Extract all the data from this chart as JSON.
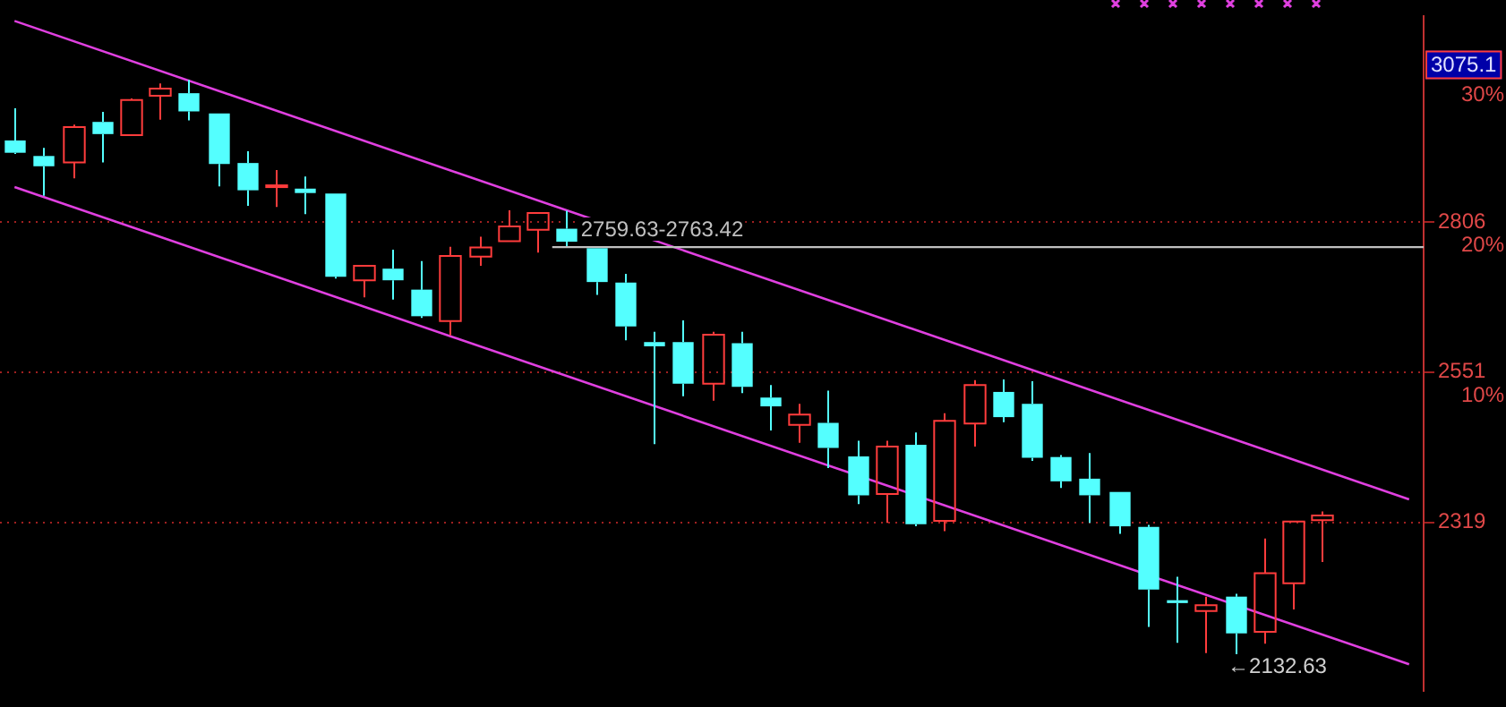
{
  "chart_data": {
    "type": "candlestick",
    "log": true,
    "grid": "y",
    "tick_labels": "y",
    "categories": [
      null,
      null,
      null,
      null,
      null,
      null,
      null,
      null,
      null,
      null,
      null,
      null,
      null,
      null,
      null,
      null,
      null,
      null,
      null,
      null,
      null,
      null,
      null,
      null,
      null,
      null,
      null,
      null,
      null,
      null,
      null,
      null,
      null,
      null,
      null,
      null,
      null,
      null,
      null,
      null,
      null,
      null,
      null,
      null,
      null,
      null,
      null,
      null,
      null
    ],
    "ohlc": [
      [
        2955,
        3016,
        2930,
        2932
      ],
      [
        2926,
        2941,
        2853,
        2907
      ],
      [
        2914,
        2985,
        2885,
        2980
      ],
      [
        2990,
        3009,
        2914,
        2967
      ],
      [
        2965,
        3035,
        2965,
        3032
      ],
      [
        3040,
        3064,
        2994,
        3054
      ],
      [
        3045,
        3071,
        2993,
        3010
      ],
      [
        3006,
        3006,
        2870,
        2911
      ],
      [
        2913,
        2935,
        2835,
        2863
      ],
      [
        2870,
        2900,
        2833,
        2872
      ],
      [
        2866,
        2888,
        2820,
        2858
      ],
      [
        2857,
        2857,
        2707,
        2710
      ],
      [
        2704,
        2729,
        2675,
        2729
      ],
      [
        2724,
        2757,
        2671,
        2704
      ],
      [
        2688,
        2737,
        2640,
        2643
      ],
      [
        2635,
        2762,
        2611,
        2746
      ],
      [
        2745,
        2780,
        2729,
        2761
      ],
      [
        2772,
        2827,
        2772,
        2798
      ],
      [
        2792,
        2822,
        2752,
        2822
      ],
      [
        2794,
        2826,
        2763.42,
        2771
      ],
      [
        2759.63,
        2759.63,
        2679,
        2701
      ],
      [
        2700,
        2715,
        2603,
        2626
      ],
      [
        2600,
        2617,
        2437,
        2593
      ],
      [
        2600,
        2636,
        2512,
        2532
      ],
      [
        2532,
        2617,
        2505,
        2612
      ],
      [
        2598,
        2617,
        2517,
        2527
      ],
      [
        2510,
        2530,
        2458,
        2496
      ],
      [
        2467,
        2500,
        2439,
        2483
      ],
      [
        2470,
        2521,
        2400,
        2431
      ],
      [
        2418,
        2442,
        2346,
        2359
      ],
      [
        2361,
        2442,
        2318,
        2433
      ],
      [
        2436,
        2455,
        2313,
        2316
      ],
      [
        2321,
        2485,
        2306,
        2473
      ],
      [
        2469,
        2538,
        2433,
        2530
      ],
      [
        2519,
        2539,
        2471,
        2479
      ],
      [
        2500,
        2536,
        2411,
        2416
      ],
      [
        2417,
        2420,
        2370,
        2380
      ],
      [
        2384,
        2423,
        2318,
        2359
      ],
      [
        2364,
        2364,
        2302,
        2313
      ],
      [
        2312,
        2315,
        2170,
        2222
      ],
      [
        2207,
        2240,
        2148,
        2203
      ],
      [
        2192,
        2212,
        2134,
        2200
      ],
      [
        2212,
        2216,
        2132.63,
        2161
      ],
      [
        2163,
        2295,
        2147,
        2245
      ],
      [
        2231,
        2320,
        2194,
        2320
      ],
      [
        2322,
        2335,
        2261,
        2329
      ],
      null,
      null,
      null
    ],
    "colors": [
      "#54ffff",
      "#54ffff",
      "#ff3c3c",
      "#54ffff",
      "#ff3c3c",
      "#ff3c3c",
      "#54ffff",
      "#54ffff",
      "#54ffff",
      "#ff3c3c",
      "#54ffff",
      "#54ffff",
      "#ff3c3c",
      "#54ffff",
      "#54ffff",
      "#ff3c3c",
      "#ff3c3c",
      "#ff3c3c",
      "#ff3c3c",
      "#54ffff",
      "#54ffff",
      "#54ffff",
      "#54ffff",
      "#54ffff",
      "#ff3c3c",
      "#54ffff",
      "#54ffff",
      "#ff3c3c",
      "#54ffff",
      "#54ffff",
      "#ff3c3c",
      "#54ffff",
      "#ff3c3c",
      "#ff3c3c",
      "#54ffff",
      "#54ffff",
      "#54ffff",
      "#54ffff",
      "#54ffff",
      "#54ffff",
      "#54ffff",
      "#ff3c3c",
      "#54ffff",
      "#ff3c3c",
      "#ff3c3c",
      "#ff3c3c",
      null,
      null,
      null
    ],
    "series": [
      {
        "type": "line",
        "color": "#e040e0",
        "values": [
          3188,
          null,
          null,
          null,
          null,
          null,
          null,
          null,
          null,
          null,
          null,
          null,
          null,
          null,
          null,
          null,
          null,
          null,
          null,
          null,
          null,
          null,
          null,
          null,
          null,
          null,
          null,
          null,
          null,
          null,
          null,
          null,
          null,
          null,
          null,
          null,
          null,
          null,
          null,
          null,
          null,
          null,
          null,
          null,
          null,
          null,
          null,
          null,
          2353
        ]
      },
      {
        "type": "line",
        "color": "#e040e0",
        "values": [
          2869,
          null,
          null,
          null,
          null,
          null,
          null,
          null,
          null,
          null,
          null,
          null,
          null,
          null,
          null,
          null,
          null,
          null,
          null,
          null,
          null,
          null,
          null,
          null,
          null,
          null,
          null,
          null,
          null,
          null,
          null,
          null,
          null,
          null,
          null,
          null,
          null,
          null,
          null,
          null,
          null,
          null,
          null,
          null,
          null,
          null,
          null,
          null,
          2119
        ]
      }
    ],
    "ylim": [
      2084,
      3197
    ],
    "yticks": [
      2319,
      2551,
      2806
    ],
    "y2lim": [
      -11.19,
      33.69
    ],
    "y2ticks": [
      {
        "value": 10,
        "label": "10%"
      },
      {
        "value": 20,
        "label": "20%"
      },
      {
        "value": 30,
        "label": "30%"
      }
    ],
    "bands": [
      {
        "axis": "y",
        "from": 2759.63,
        "to": 2763.42,
        "label": "2759.63-2763.42",
        "color": "#c0c0c0"
      }
    ],
    "annotations": [
      "←2132.63",
      "3075.1"
    ]
  }
}
